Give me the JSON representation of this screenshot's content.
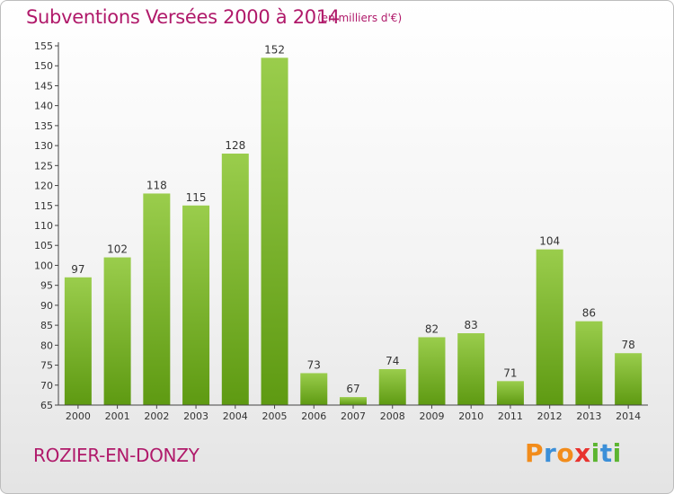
{
  "header": {
    "title": "Subventions Versées 2000 à 2014",
    "unit": "(en milliers d'€)"
  },
  "footer": {
    "commune": "ROZIER-EN-DONZY",
    "logo_text": "Proxiti"
  },
  "colors": {
    "title": "#b0196a",
    "bar_light": "#9acd4c",
    "bar_dark": "#5e9a12",
    "logo": [
      "#f28c1b",
      "#3b8fd8",
      "#f28c1b",
      "#e8322e",
      "#5cb531",
      "#3b8fd8",
      "#5cb531"
    ]
  },
  "chart_data": {
    "type": "bar",
    "title": "Subventions Versées 2000 à 2014",
    "subtitle": "(en milliers d'€)",
    "xlabel": "",
    "ylabel": "",
    "categories": [
      "2000",
      "2001",
      "2002",
      "2003",
      "2004",
      "2005",
      "2006",
      "2007",
      "2008",
      "2009",
      "2010",
      "2011",
      "2012",
      "2013",
      "2014"
    ],
    "values": [
      97,
      102,
      118,
      115,
      128,
      152,
      73,
      67,
      74,
      82,
      83,
      71,
      104,
      86,
      78
    ],
    "ylim": [
      65,
      155
    ],
    "yticks": [
      65,
      70,
      75,
      80,
      85,
      90,
      95,
      100,
      105,
      110,
      115,
      120,
      125,
      130,
      135,
      140,
      145,
      150,
      155
    ],
    "grid": false,
    "legend": "none"
  }
}
